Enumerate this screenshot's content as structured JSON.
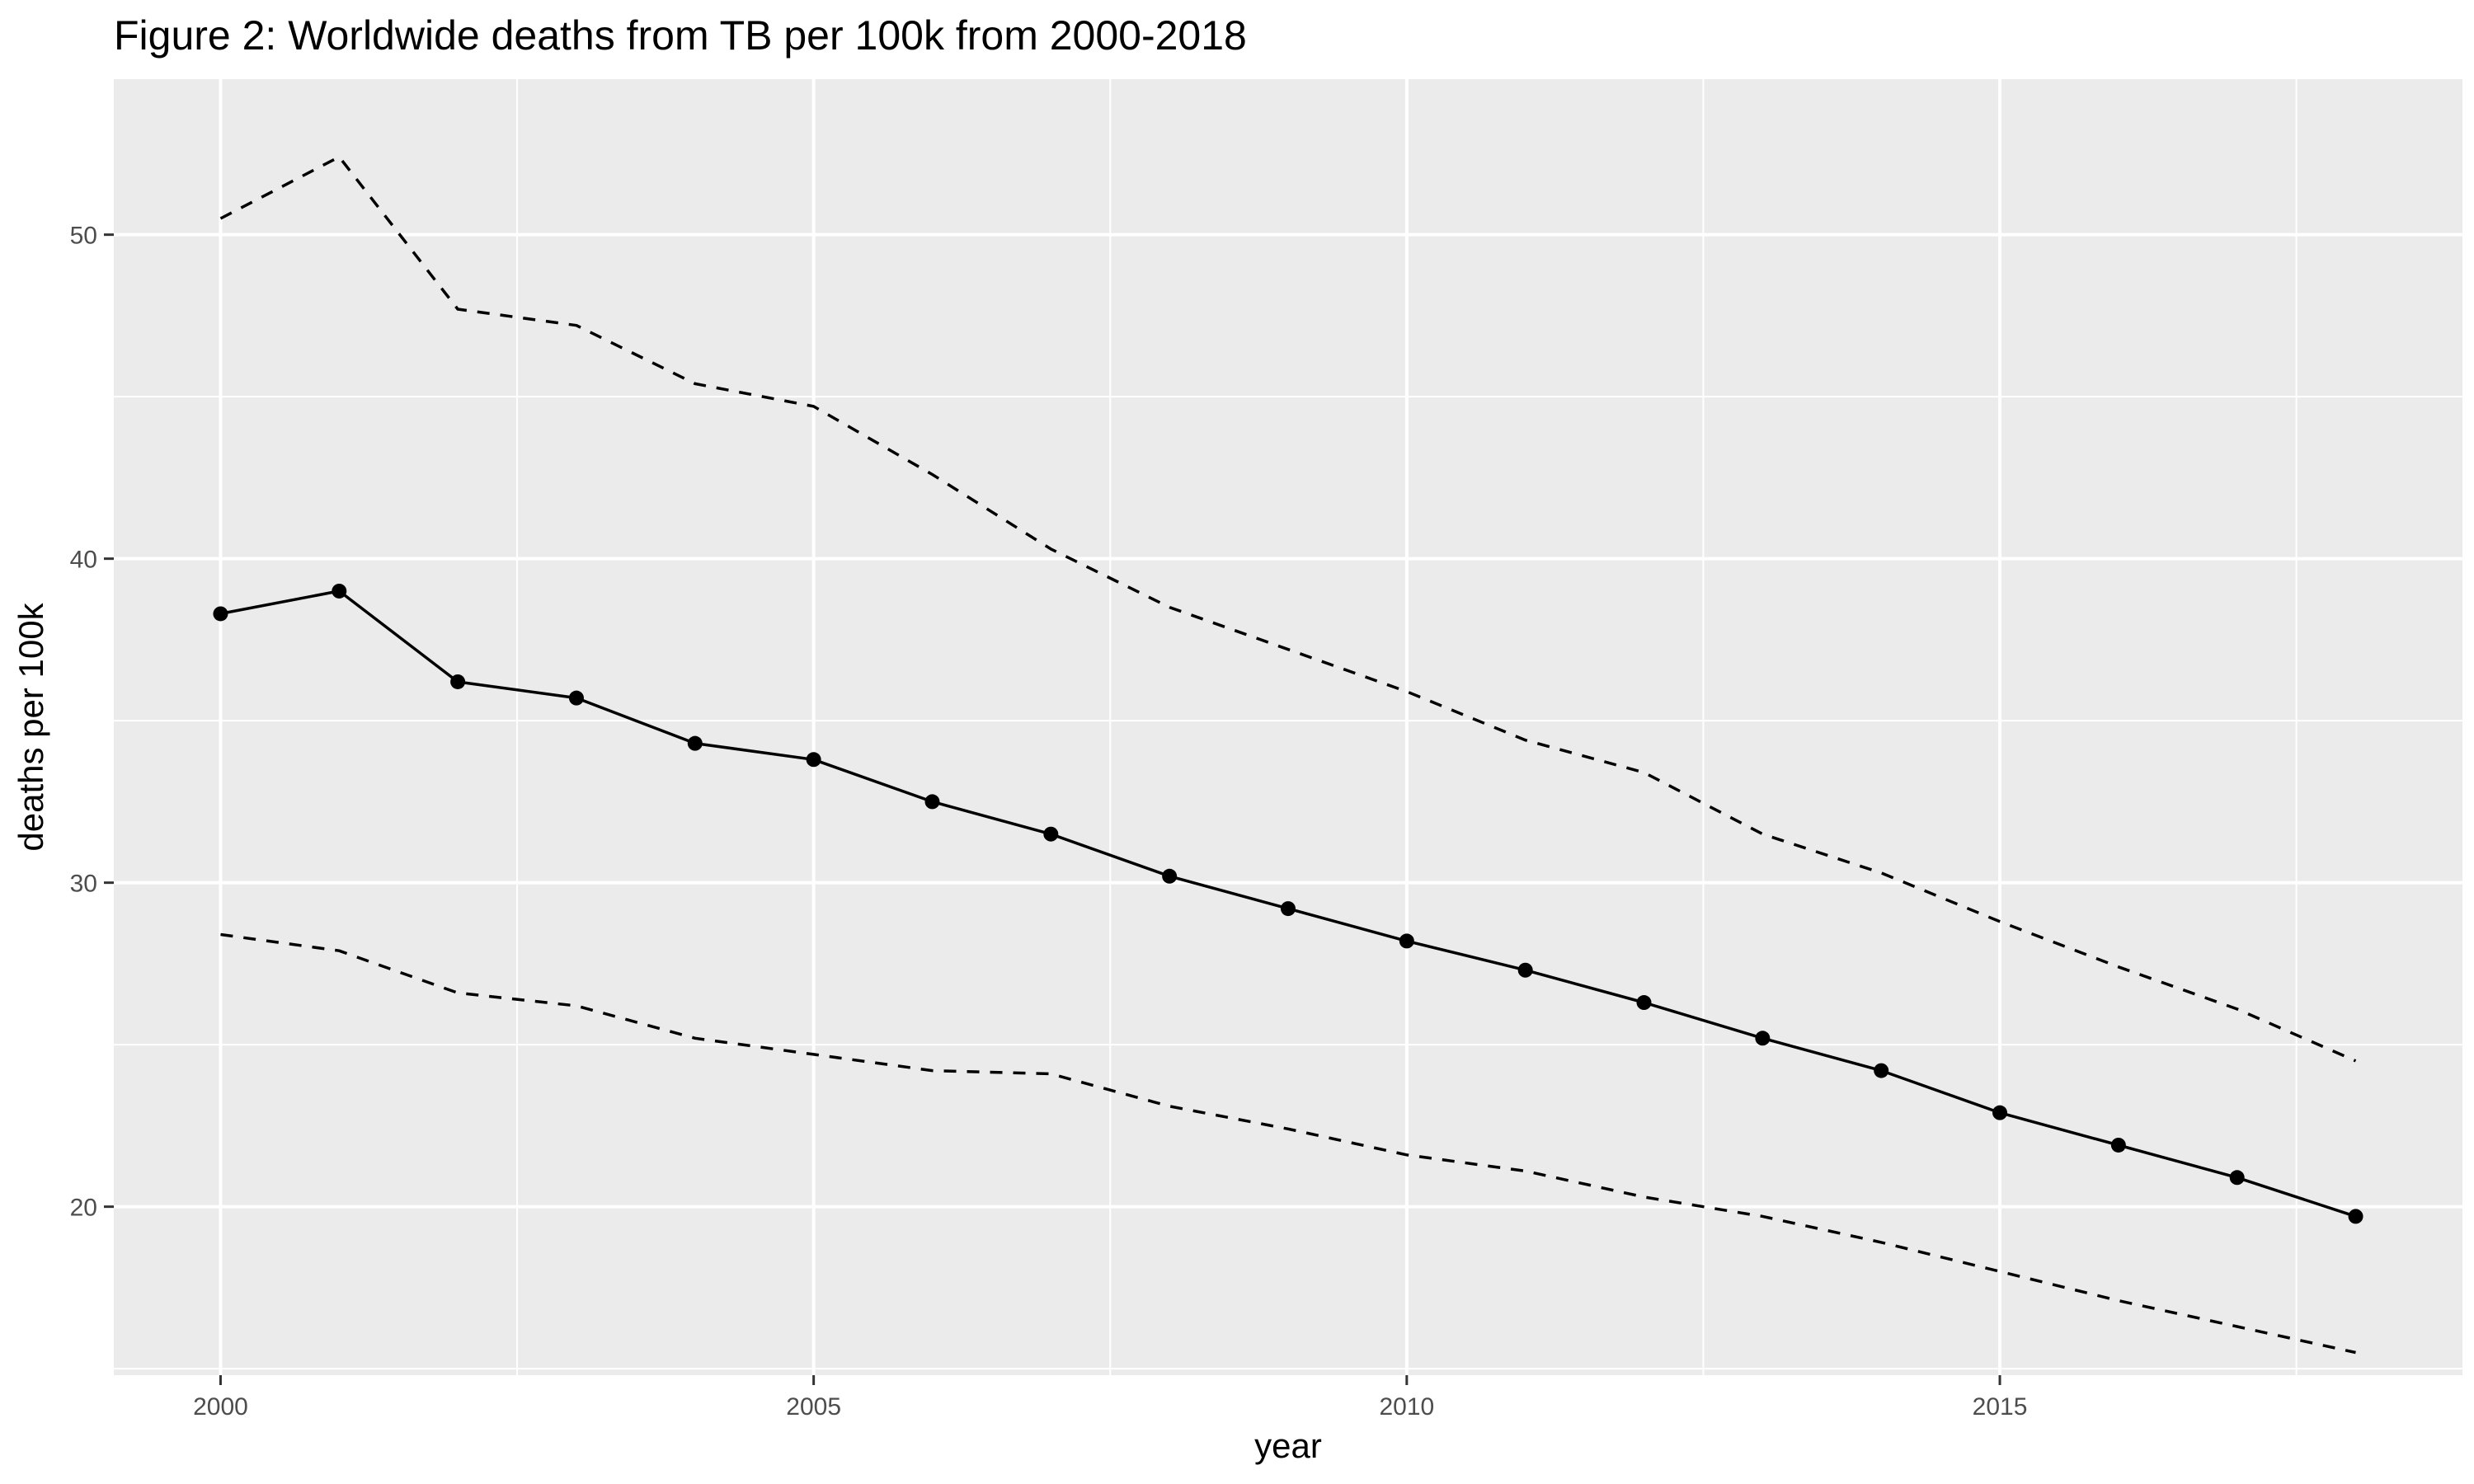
{
  "chart_data": {
    "type": "line",
    "title": "Figure 2: Worldwide deaths from TB per 100k from 2000-2018",
    "xlabel": "year",
    "ylabel": "deaths per 100k",
    "x": [
      2000,
      2001,
      2002,
      2003,
      2004,
      2005,
      2006,
      2007,
      2008,
      2009,
      2010,
      2011,
      2012,
      2013,
      2014,
      2015,
      2016,
      2017,
      2018
    ],
    "xlim": [
      1999.1,
      2018.9
    ],
    "ylim": [
      14.8,
      54.8
    ],
    "x_ticks": [
      2000,
      2005,
      2010,
      2015
    ],
    "x_tick_labels": [
      "2000",
      "2005",
      "2010",
      "2015"
    ],
    "x_minor": [
      2002.5,
      2007.5,
      2012.5,
      2017.5
    ],
    "y_ticks": [
      20,
      30,
      40,
      50
    ],
    "y_tick_labels": [
      "20",
      "30",
      "40",
      "50"
    ],
    "y_minor": [
      15,
      25,
      35,
      45
    ],
    "grid": true,
    "background": "#ebebeb",
    "gridline_color": "#ffffff",
    "series": [
      {
        "style": "solid",
        "markers": true,
        "color": "#000000",
        "values": [
          38.3,
          39.0,
          36.2,
          35.7,
          34.3,
          33.8,
          32.5,
          31.5,
          30.2,
          29.2,
          28.2,
          27.3,
          26.3,
          25.2,
          24.2,
          22.9,
          21.9,
          20.9,
          19.7
        ]
      },
      {
        "style": "dashed",
        "markers": false,
        "color": "#000000",
        "values": [
          50.5,
          52.4,
          47.7,
          47.2,
          45.4,
          44.7,
          42.6,
          40.3,
          38.5,
          37.2,
          35.9,
          34.4,
          33.4,
          31.5,
          30.3,
          28.8,
          27.4,
          26.1,
          24.5
        ]
      },
      {
        "style": "dashed",
        "markers": false,
        "color": "#000000",
        "values": [
          28.4,
          27.9,
          26.6,
          26.2,
          25.2,
          24.7,
          24.2,
          24.1,
          23.1,
          22.4,
          21.6,
          21.1,
          20.3,
          19.7,
          18.9,
          18.0,
          17.1,
          16.3,
          15.5
        ]
      }
    ]
  }
}
